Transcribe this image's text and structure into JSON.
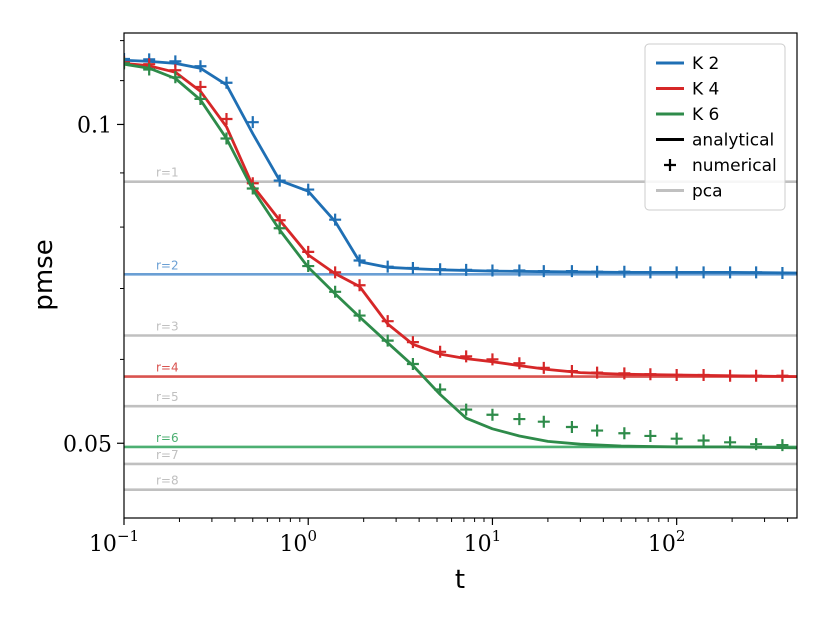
{
  "chart_data": {
    "type": "line",
    "xlabel": "t",
    "ylabel": "pmse",
    "xscale": "log",
    "yscale": "log",
    "xlim": [
      0.1,
      450
    ],
    "ylim": [
      0.0425,
      0.122
    ],
    "x_ticks": [
      {
        "value": 0.1,
        "base": "10",
        "exp": "−1"
      },
      {
        "value": 1,
        "base": "10",
        "exp": "0"
      },
      {
        "value": 10,
        "base": "10",
        "exp": "1"
      },
      {
        "value": 100,
        "base": "10",
        "exp": "2"
      }
    ],
    "y_ticks": [
      {
        "value": 0.1,
        "label": "0.1"
      },
      {
        "value": 0.05,
        "label": "0.05"
      }
    ],
    "grid": false,
    "legend_position": "top-right",
    "legend": [
      {
        "label": "K 2",
        "kind": "line",
        "color": "#1f6fb4"
      },
      {
        "label": "K 4",
        "kind": "line",
        "color": "#d62728"
      },
      {
        "label": "K 6",
        "kind": "line",
        "color": "#2e8b4a"
      },
      {
        "label": "analytical",
        "kind": "line",
        "color": "#000000"
      },
      {
        "label": "numerical",
        "kind": "marker",
        "color": "#000000"
      },
      {
        "label": "pca",
        "kind": "line",
        "color": "#c0c0c0"
      }
    ],
    "pca_lines": [
      {
        "label": "r=1",
        "value": 0.0883,
        "color": "#c0c0c0"
      },
      {
        "label": "r=2",
        "value": 0.0722,
        "color": "#6a9fd4"
      },
      {
        "label": "r=3",
        "value": 0.0632,
        "color": "#c0c0c0"
      },
      {
        "label": "r=4",
        "value": 0.0578,
        "color": "#d9534f"
      },
      {
        "label": "r=5",
        "value": 0.0542,
        "color": "#c0c0c0"
      },
      {
        "label": "r=6",
        "value": 0.0496,
        "color": "#4caf72"
      },
      {
        "label": "r=7",
        "value": 0.0478,
        "color": "#c0c0c0"
      },
      {
        "label": "r=8",
        "value": 0.0452,
        "color": "#c0c0c0"
      }
    ],
    "series": [
      {
        "name": "K 2",
        "color": "#1f6fb4",
        "analytical": {
          "x": [
            0.1,
            0.137,
            0.19,
            0.26,
            0.36,
            0.5,
            0.7,
            1.0,
            1.4,
            1.9,
            2.7,
            3.7,
            5.2,
            10,
            20,
            50,
            100,
            200,
            450
          ],
          "y": [
            0.115,
            0.1147,
            0.1142,
            0.113,
            0.109,
            0.098,
            0.0885,
            0.0865,
            0.081,
            0.0742,
            0.0733,
            0.0731,
            0.0729,
            0.0727,
            0.0726,
            0.0725,
            0.0725,
            0.0725,
            0.0724
          ]
        },
        "numerical": {
          "x": [
            0.1,
            0.137,
            0.19,
            0.26,
            0.36,
            0.5,
            0.7,
            1.0,
            1.4,
            1.9,
            2.7,
            3.7,
            5.2,
            7.2,
            10,
            14,
            19,
            27,
            37,
            52,
            72,
            100,
            140,
            195,
            270,
            375
          ],
          "y": [
            0.1153,
            0.1152,
            0.1147,
            0.1135,
            0.1095,
            0.1005,
            0.0885,
            0.0868,
            0.0813,
            0.0744,
            0.0734,
            0.0732,
            0.073,
            0.0729,
            0.0728,
            0.0728,
            0.0727,
            0.0727,
            0.0726,
            0.0726,
            0.0725,
            0.0725,
            0.0725,
            0.0725,
            0.0725,
            0.0724
          ]
        }
      },
      {
        "name": "K 4",
        "color": "#d62728",
        "analytical": {
          "x": [
            0.1,
            0.137,
            0.19,
            0.26,
            0.36,
            0.5,
            0.7,
            1.0,
            1.4,
            1.9,
            2.7,
            3.7,
            5.2,
            7.2,
            10,
            14,
            20,
            30,
            50,
            100,
            200,
            450
          ],
          "y": [
            0.1142,
            0.1136,
            0.112,
            0.1075,
            0.0995,
            0.0875,
            0.0812,
            0.0753,
            0.0723,
            0.0703,
            0.0648,
            0.062,
            0.0607,
            0.0601,
            0.0597,
            0.0592,
            0.0587,
            0.0583,
            0.0581,
            0.058,
            0.0579,
            0.0578
          ]
        },
        "numerical": {
          "x": [
            0.1,
            0.137,
            0.19,
            0.26,
            0.36,
            0.5,
            0.7,
            1.0,
            1.4,
            1.9,
            2.7,
            3.7,
            5.2,
            7.2,
            10,
            14,
            19,
            27,
            37,
            52,
            72,
            100,
            140,
            195,
            270,
            375
          ],
          "y": [
            0.1145,
            0.114,
            0.1125,
            0.1085,
            0.1012,
            0.088,
            0.0812,
            0.0758,
            0.0725,
            0.0705,
            0.0652,
            0.0623,
            0.061,
            0.0604,
            0.06,
            0.0595,
            0.0589,
            0.0585,
            0.0583,
            0.0582,
            0.0581,
            0.058,
            0.058,
            0.0579,
            0.0579,
            0.0579
          ]
        }
      },
      {
        "name": "K 6",
        "color": "#2e8b4a",
        "analytical": {
          "x": [
            0.1,
            0.137,
            0.19,
            0.26,
            0.36,
            0.5,
            0.7,
            1.0,
            1.4,
            1.9,
            2.7,
            3.7,
            5.2,
            7.2,
            10,
            14,
            20,
            30,
            50,
            100,
            200,
            450
          ],
          "y": [
            0.114,
            0.113,
            0.1105,
            0.1055,
            0.097,
            0.0868,
            0.0795,
            0.0733,
            0.0692,
            0.0658,
            0.0622,
            0.0592,
            0.0556,
            0.0528,
            0.0516,
            0.0508,
            0.0502,
            0.0499,
            0.0497,
            0.0496,
            0.0496,
            0.0495
          ]
        },
        "numerical": {
          "x": [
            0.1,
            0.137,
            0.19,
            0.26,
            0.36,
            0.5,
            0.7,
            1.0,
            1.4,
            1.9,
            2.7,
            3.7,
            5.2,
            7.2,
            10,
            14,
            19,
            27,
            37,
            52,
            72,
            100,
            140,
            195,
            270,
            375
          ],
          "y": [
            0.1142,
            0.1127,
            0.1108,
            0.1057,
            0.097,
            0.087,
            0.0798,
            0.0735,
            0.0695,
            0.066,
            0.0625,
            0.0594,
            0.0562,
            0.0538,
            0.0532,
            0.0527,
            0.0524,
            0.0518,
            0.0514,
            0.0511,
            0.0508,
            0.0505,
            0.0503,
            0.0501,
            0.0499,
            0.0498
          ]
        }
      }
    ]
  }
}
